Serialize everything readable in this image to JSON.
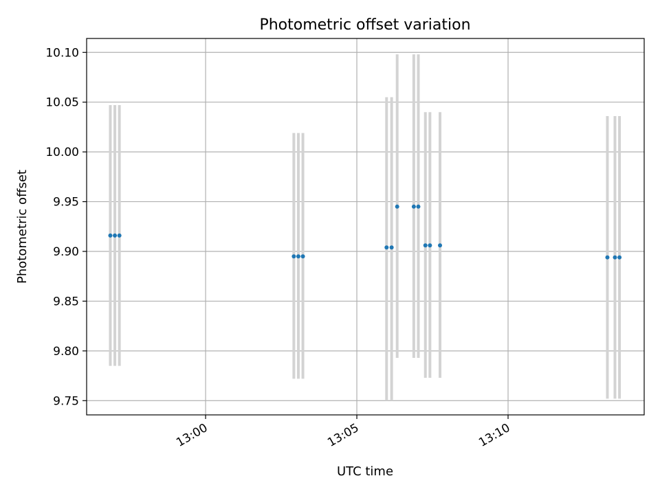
{
  "chart_data": {
    "type": "scatter",
    "title": "Photometric offset variation",
    "xlabel": "UTC time",
    "ylabel": "Photometric offset",
    "x_axis_type": "time",
    "xlim": [
      "12:56:04",
      "13:14:30"
    ],
    "ylim": [
      9.7357,
      10.114
    ],
    "x_ticks": [
      "13:00",
      "13:05",
      "13:10"
    ],
    "y_ticks": [
      "9.75",
      "9.80",
      "9.85",
      "9.90",
      "9.95",
      "10.00",
      "10.05",
      "10.10"
    ],
    "grid": true,
    "marker_color": "#1f77b4",
    "errorbar_color": "#d3d3d3",
    "points": [
      {
        "x": "12:56:51",
        "y": 9.916,
        "ylow": 9.785,
        "yhigh": 10.047
      },
      {
        "x": "12:57:00",
        "y": 9.916,
        "ylow": 9.785,
        "yhigh": 10.047
      },
      {
        "x": "12:57:09",
        "y": 9.916,
        "ylow": 9.785,
        "yhigh": 10.047
      },
      {
        "x": "13:02:55",
        "y": 9.895,
        "ylow": 9.772,
        "yhigh": 10.019
      },
      {
        "x": "13:03:04",
        "y": 9.895,
        "ylow": 9.772,
        "yhigh": 10.019
      },
      {
        "x": "13:03:13",
        "y": 9.895,
        "ylow": 9.772,
        "yhigh": 10.019
      },
      {
        "x": "13:05:59",
        "y": 9.904,
        "ylow": 9.75,
        "yhigh": 10.055
      },
      {
        "x": "13:06:09",
        "y": 9.904,
        "ylow": 9.75,
        "yhigh": 10.055
      },
      {
        "x": "13:06:20",
        "y": 9.945,
        "ylow": 9.793,
        "yhigh": 10.098
      },
      {
        "x": "13:06:53",
        "y": 9.945,
        "ylow": 9.793,
        "yhigh": 10.098
      },
      {
        "x": "13:07:02",
        "y": 9.945,
        "ylow": 9.793,
        "yhigh": 10.098
      },
      {
        "x": "13:07:16",
        "y": 9.906,
        "ylow": 9.773,
        "yhigh": 10.04
      },
      {
        "x": "13:07:25",
        "y": 9.906,
        "ylow": 9.773,
        "yhigh": 10.04
      },
      {
        "x": "13:07:45",
        "y": 9.906,
        "ylow": 9.773,
        "yhigh": 10.04
      },
      {
        "x": "13:13:17",
        "y": 9.894,
        "ylow": 9.752,
        "yhigh": 10.036
      },
      {
        "x": "13:13:32",
        "y": 9.894,
        "ylow": 9.752,
        "yhigh": 10.036
      },
      {
        "x": "13:13:41",
        "y": 9.894,
        "ylow": 9.752,
        "yhigh": 10.036
      }
    ]
  }
}
